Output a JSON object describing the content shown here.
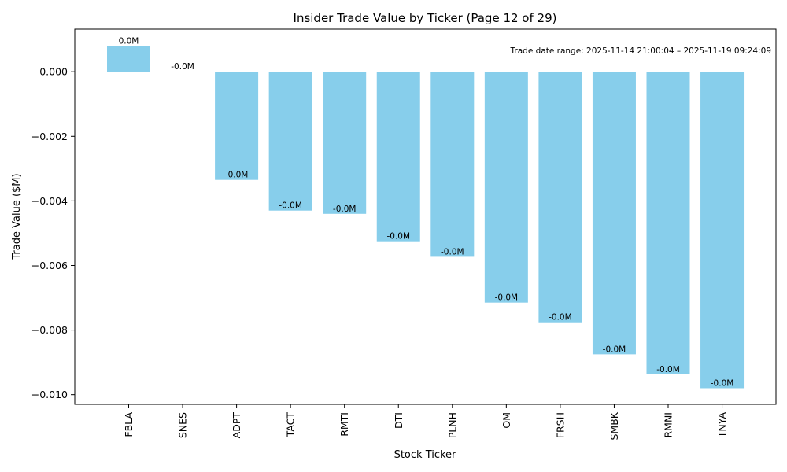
{
  "chart_data": {
    "type": "bar",
    "title": "Insider Trade Value by Ticker (Page 12 of 29)",
    "xlabel": "Stock Ticker",
    "ylabel": "Trade Value ($M)",
    "categories": [
      "FBLA",
      "SNES",
      "ADPT",
      "TACT",
      "RMTI",
      "DTI",
      "PLNH",
      "OM",
      "FRSH",
      "SMBK",
      "RMNI",
      "TNYA"
    ],
    "values": [
      0.0008,
      0.0,
      -0.00335,
      -0.0043,
      -0.0044,
      -0.00525,
      -0.00573,
      -0.00715,
      -0.00776,
      -0.00875,
      -0.00937,
      -0.0098
    ],
    "data_labels": [
      "0.0M",
      "-0.0M",
      "-0.0M",
      "-0.0M",
      "-0.0M",
      "-0.0M",
      "-0.0M",
      "-0.0M",
      "-0.0M",
      "-0.0M",
      "-0.0M",
      "-0.0M"
    ],
    "ylim": [
      -0.0103,
      0.00132
    ],
    "yticks": [
      0.0,
      -0.002,
      -0.004,
      -0.006,
      -0.008,
      -0.01
    ],
    "ytick_labels": [
      "0.000",
      "−0.002",
      "−0.004",
      "−0.006",
      "−0.008",
      "−0.010"
    ],
    "annotation": "Trade date range: 2025-11-14 21:00:04 – 2025-11-19 09:24:09",
    "bar_color": "#87ceeb",
    "grid": false
  }
}
